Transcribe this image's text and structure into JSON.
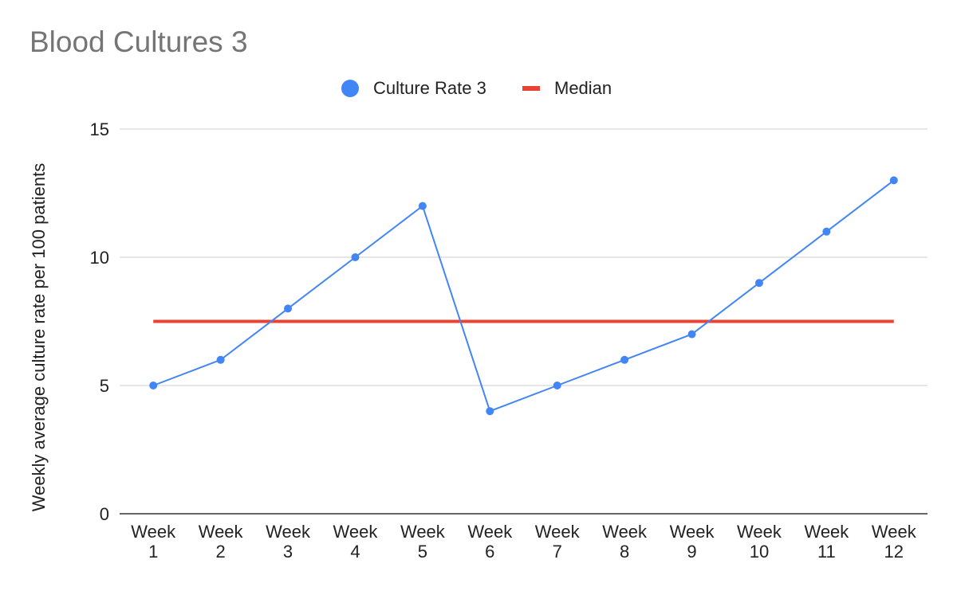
{
  "chart_data": {
    "type": "line",
    "title": "Blood Cultures 3",
    "xlabel": "",
    "ylabel": "Weekly average culture rate per 100 patients",
    "categories": [
      [
        "Week",
        "1"
      ],
      [
        "Week",
        "2"
      ],
      [
        "Week",
        "3"
      ],
      [
        "Week",
        "4"
      ],
      [
        "Week",
        "5"
      ],
      [
        "Week",
        "6"
      ],
      [
        "Week",
        "7"
      ],
      [
        "Week",
        "8"
      ],
      [
        "Week",
        "9"
      ],
      [
        "Week",
        "10"
      ],
      [
        "Week",
        "11"
      ],
      [
        "Week",
        "12"
      ]
    ],
    "ylim": [
      0,
      15
    ],
    "yticks": [
      "0",
      "5",
      "10",
      "15"
    ],
    "grid": true,
    "legend_position": "top",
    "series": [
      {
        "name": "Culture Rate 3",
        "color": "#4285f4",
        "marker": "circle",
        "values": [
          5,
          6,
          8,
          10,
          12,
          4,
          5,
          6,
          7,
          9,
          11,
          13
        ]
      },
      {
        "name": "Median",
        "color": "#ea4335",
        "marker": "none",
        "values": [
          7.5,
          7.5,
          7.5,
          7.5,
          7.5,
          7.5,
          7.5,
          7.5,
          7.5,
          7.5,
          7.5,
          7.5
        ]
      }
    ]
  }
}
